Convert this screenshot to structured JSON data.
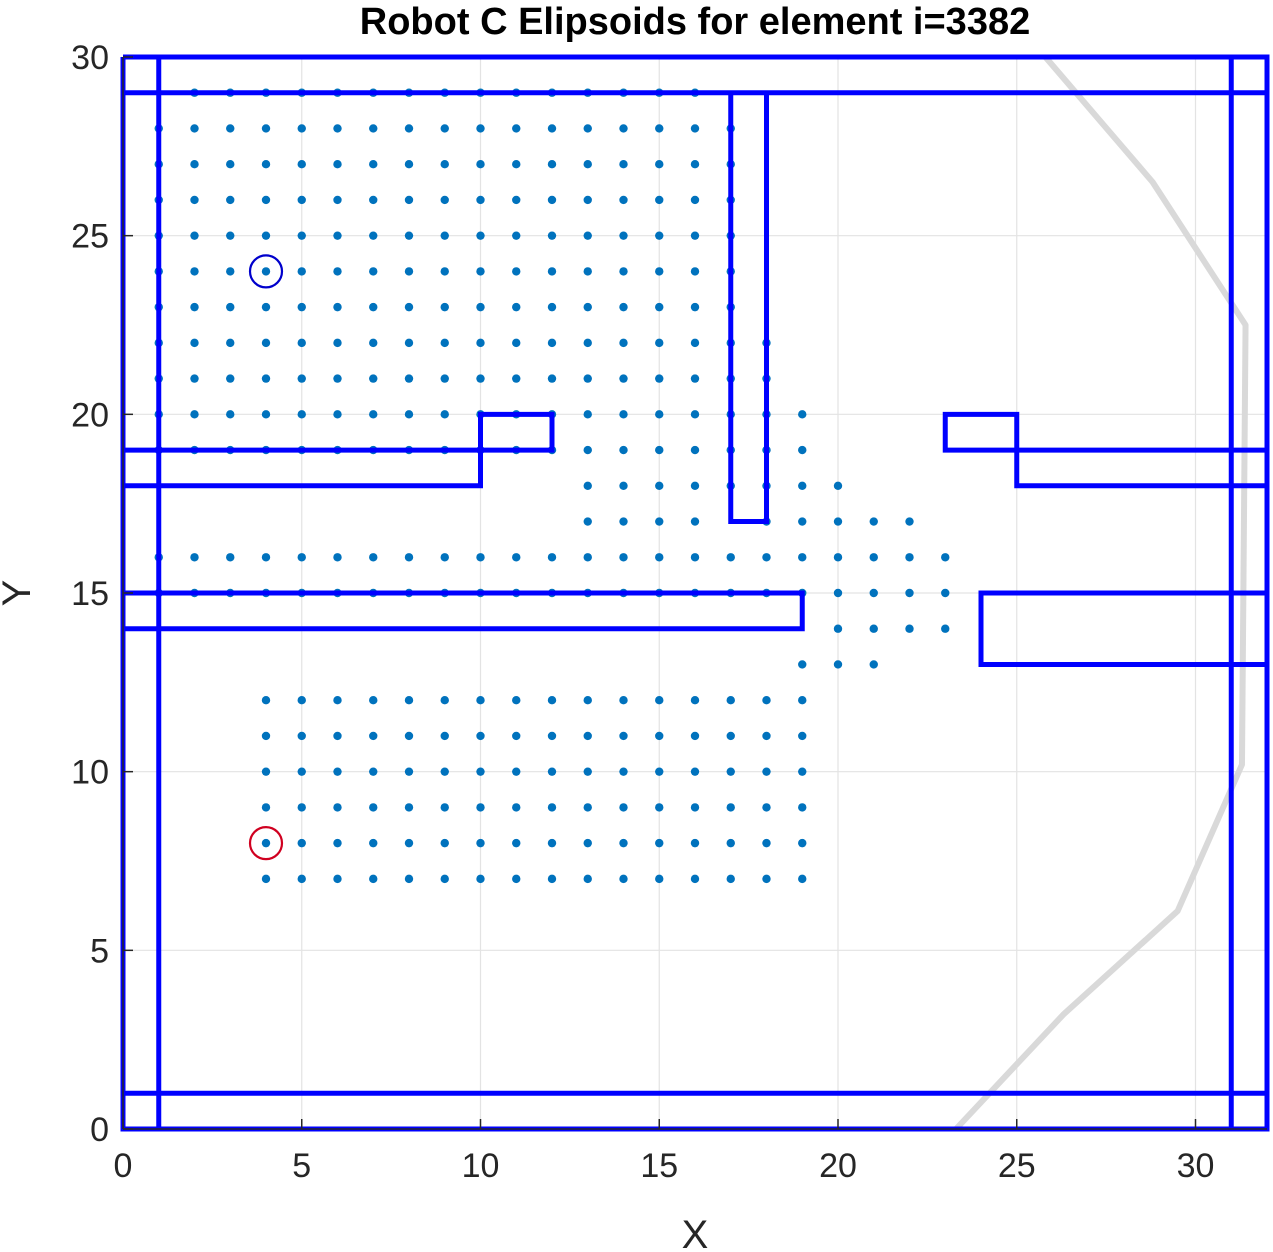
{
  "chart_data": {
    "type": "scatter",
    "title": "Robot C Elipsoids for element i=3382",
    "xlabel": "X",
    "ylabel": "Y",
    "xlim": [
      0,
      32
    ],
    "ylim": [
      0,
      30
    ],
    "xticks": [
      "0",
      "5",
      "10",
      "15",
      "20",
      "25",
      "30"
    ],
    "yticks": [
      "0",
      "5",
      "10",
      "15",
      "20",
      "25",
      "30"
    ],
    "grid": true,
    "colors": {
      "points": "#0072BD",
      "walls": "#0000FF",
      "path": "#D9D9D9",
      "start_marker": "#0000CC",
      "goal_marker": "#D00020",
      "grid": "#E3E3E3",
      "axes": "#262626"
    },
    "point_rows": [
      {
        "y": 29,
        "x": [
          2,
          3,
          4,
          5,
          6,
          7,
          8,
          9,
          10,
          11,
          12,
          13,
          14,
          15,
          16
        ]
      },
      {
        "y": 28,
        "x": [
          1,
          2,
          3,
          4,
          5,
          6,
          7,
          8,
          9,
          10,
          11,
          12,
          13,
          14,
          15,
          16,
          17
        ]
      },
      {
        "y": 27,
        "x": [
          1,
          2,
          3,
          4,
          5,
          6,
          7,
          8,
          9,
          10,
          11,
          12,
          13,
          14,
          15,
          16,
          17
        ]
      },
      {
        "y": 26,
        "x": [
          1,
          2,
          3,
          4,
          5,
          6,
          7,
          8,
          9,
          10,
          11,
          12,
          13,
          14,
          15,
          16,
          17
        ]
      },
      {
        "y": 25,
        "x": [
          1,
          2,
          3,
          4,
          5,
          6,
          7,
          8,
          9,
          10,
          11,
          12,
          13,
          14,
          15,
          16,
          17
        ]
      },
      {
        "y": 24,
        "x": [
          1,
          2,
          3,
          4,
          5,
          6,
          7,
          8,
          9,
          10,
          11,
          12,
          13,
          14,
          15,
          16,
          17
        ]
      },
      {
        "y": 23,
        "x": [
          1,
          2,
          3,
          4,
          5,
          6,
          7,
          8,
          9,
          10,
          11,
          12,
          13,
          14,
          15,
          16,
          17
        ]
      },
      {
        "y": 22,
        "x": [
          1,
          2,
          3,
          4,
          5,
          6,
          7,
          8,
          9,
          10,
          11,
          12,
          13,
          14,
          15,
          16,
          17,
          18
        ]
      },
      {
        "y": 21,
        "x": [
          1,
          2,
          3,
          4,
          5,
          6,
          7,
          8,
          9,
          10,
          11,
          12,
          13,
          14,
          15,
          16,
          17,
          18
        ]
      },
      {
        "y": 20,
        "x": [
          1,
          2,
          3,
          4,
          5,
          6,
          7,
          8,
          9,
          10,
          11,
          12,
          13,
          14,
          15,
          16,
          17,
          18,
          19
        ]
      },
      {
        "y": 19,
        "x": [
          1,
          2,
          3,
          4,
          5,
          6,
          7,
          8,
          9,
          10,
          11,
          12,
          13,
          14,
          15,
          16,
          17,
          18,
          19
        ]
      },
      {
        "y": 18,
        "x": [
          13,
          14,
          15,
          16,
          17,
          18,
          19,
          20
        ]
      },
      {
        "y": 17,
        "x": [
          13,
          14,
          15,
          16,
          18,
          19,
          20,
          21,
          22
        ]
      },
      {
        "y": 16,
        "x": [
          1,
          2,
          3,
          4,
          5,
          6,
          7,
          8,
          9,
          10,
          11,
          12,
          13,
          14,
          15,
          16,
          17,
          18,
          19,
          20,
          21,
          22,
          23
        ]
      },
      {
        "y": 15,
        "x": [
          1,
          2,
          3,
          4,
          5,
          6,
          7,
          8,
          9,
          10,
          11,
          12,
          13,
          14,
          15,
          16,
          17,
          18,
          19,
          20,
          21,
          22,
          23
        ]
      },
      {
        "y": 14,
        "x": [
          20,
          21,
          22,
          23
        ]
      },
      {
        "y": 13,
        "x": [
          19,
          20,
          21
        ]
      },
      {
        "y": 12,
        "x": [
          4,
          5,
          6,
          7,
          8,
          9,
          10,
          11,
          12,
          13,
          14,
          15,
          16,
          17,
          18,
          19
        ]
      },
      {
        "y": 11,
        "x": [
          4,
          5,
          6,
          7,
          8,
          9,
          10,
          11,
          12,
          13,
          14,
          15,
          16,
          17,
          18,
          19
        ]
      },
      {
        "y": 10,
        "x": [
          4,
          5,
          6,
          7,
          8,
          9,
          10,
          11,
          12,
          13,
          14,
          15,
          16,
          17,
          18,
          19
        ]
      },
      {
        "y": 9,
        "x": [
          4,
          5,
          6,
          7,
          8,
          9,
          10,
          11,
          12,
          13,
          14,
          15,
          16,
          17,
          18,
          19
        ]
      },
      {
        "y": 8,
        "x": [
          4,
          5,
          6,
          7,
          8,
          9,
          10,
          11,
          12,
          13,
          14,
          15,
          16,
          17,
          18,
          19
        ]
      },
      {
        "y": 7,
        "x": [
          4,
          5,
          6,
          7,
          8,
          9,
          10,
          11,
          12,
          13,
          14,
          15,
          16,
          17,
          18,
          19
        ]
      }
    ],
    "walls": [
      [
        [
          0,
          30
        ],
        [
          32,
          30
        ],
        [
          32,
          0
        ],
        [
          0,
          0
        ],
        [
          0,
          30
        ]
      ],
      [
        [
          0,
          29
        ],
        [
          32,
          29
        ]
      ],
      [
        [
          0,
          1
        ],
        [
          32,
          1
        ]
      ],
      [
        [
          1,
          0
        ],
        [
          1,
          30
        ]
      ],
      [
        [
          31,
          0
        ],
        [
          31,
          30
        ]
      ],
      [
        [
          17,
          29
        ],
        [
          17,
          17
        ],
        [
          18,
          17
        ],
        [
          18,
          29
        ]
      ],
      [
        [
          0,
          19
        ],
        [
          10,
          19
        ],
        [
          10,
          20
        ],
        [
          12,
          20
        ],
        [
          12,
          19
        ],
        [
          10,
          19
        ]
      ],
      [
        [
          0,
          18
        ],
        [
          10,
          18
        ],
        [
          10,
          19
        ]
      ],
      [
        [
          0,
          15
        ],
        [
          19,
          15
        ],
        [
          19,
          14
        ],
        [
          0,
          14
        ]
      ],
      [
        [
          32,
          19
        ],
        [
          25,
          19
        ],
        [
          25,
          20
        ],
        [
          23,
          20
        ],
        [
          23,
          19
        ],
        [
          25,
          19
        ],
        [
          25,
          18
        ],
        [
          32,
          18
        ]
      ],
      [
        [
          32,
          15
        ],
        [
          24,
          15
        ],
        [
          24,
          13
        ],
        [
          32,
          13
        ]
      ]
    ],
    "path": [
      [
        23.3,
        0
      ],
      [
        26.3,
        3.2
      ],
      [
        29.5,
        6.1
      ],
      [
        31.3,
        10.2
      ],
      [
        31.4,
        22.5
      ],
      [
        28.8,
        26.5
      ],
      [
        25.8,
        30
      ]
    ],
    "start": {
      "x": 4,
      "y": 24
    },
    "goal": {
      "x": 4,
      "y": 8
    }
  }
}
